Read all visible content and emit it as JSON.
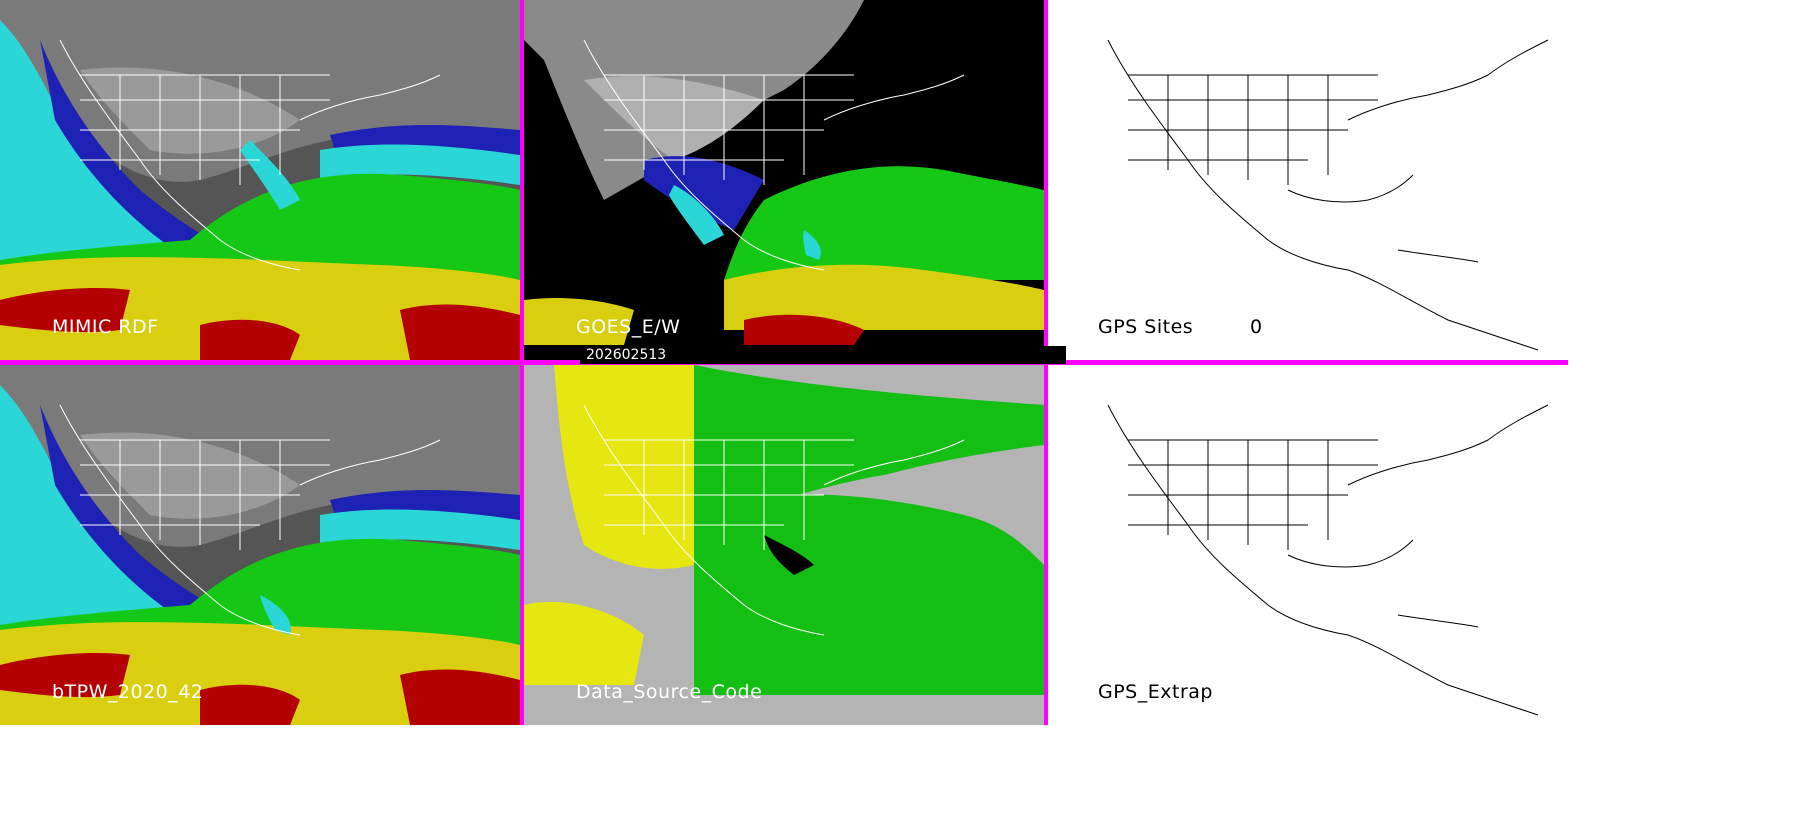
{
  "panels": {
    "mimic": {
      "label": "MIMIC RDF"
    },
    "goes": {
      "label": "GOES_E/W"
    },
    "gps_sites": {
      "label": "GPS Sites",
      "count": "0"
    },
    "blended": {
      "label": "bTPW_2020_42"
    },
    "data_source": {
      "label": "Data_Source_Code"
    },
    "gps_extrap": {
      "label": "GPS_Extrap"
    }
  },
  "timestamp": "202602513",
  "colors": {
    "separator": "#ff00ff",
    "tpw_dry_gray": "#6e6e6e",
    "tpw_blue": "#1e22b4",
    "tpw_cyan": "#2ad6d6",
    "tpw_green": "#16c816",
    "tpw_yellow": "#d9cf10",
    "tpw_red": "#b40000",
    "source_yellow": "#e6e610",
    "source_green": "#12bf12",
    "source_gray": "#b4b4b4"
  }
}
